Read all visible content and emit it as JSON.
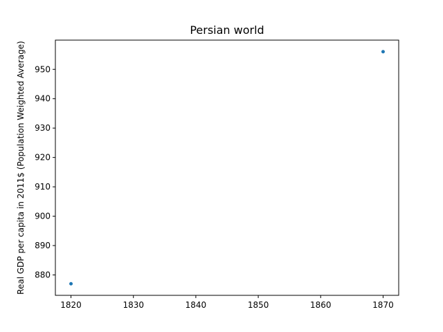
{
  "chart_data": {
    "type": "scatter",
    "title": "Persian world",
    "xlabel": "",
    "ylabel": "Real GDP per capita in 2011$ (Population Weighted Average)",
    "xlim": [
      1817.5,
      1872.5
    ],
    "ylim": [
      873.05,
      959.95
    ],
    "xticks": [
      1820,
      1830,
      1840,
      1850,
      1860,
      1870
    ],
    "xtick_labels": [
      "1820",
      "1830",
      "1840",
      "1850",
      "1860",
      "1870"
    ],
    "yticks": [
      880,
      890,
      900,
      910,
      920,
      930,
      940,
      950
    ],
    "ytick_labels": [
      "880",
      "890",
      "900",
      "910",
      "920",
      "930",
      "940",
      "950"
    ],
    "grid": false,
    "series": [
      {
        "color": "#1f77b4",
        "x": [
          1820,
          1870
        ],
        "y": [
          877,
          956
        ]
      }
    ]
  }
}
